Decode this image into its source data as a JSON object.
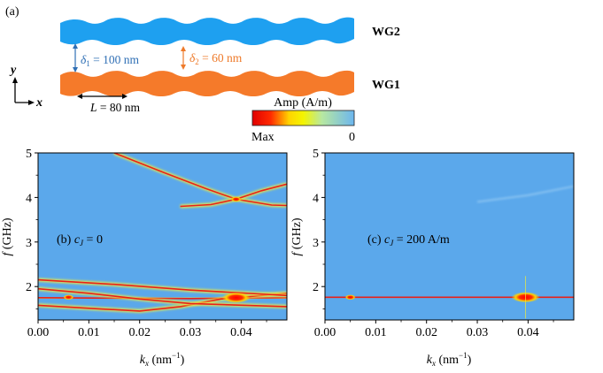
{
  "panel_a": {
    "label": "(a)",
    "waveguides": [
      {
        "name": "WG2",
        "color": "#1ea0f0"
      },
      {
        "name": "WG1",
        "color": "#f57a2a"
      }
    ],
    "dimensions": {
      "delta1": {
        "symbol": "δ",
        "sub": "1",
        "text": " = 100 nm",
        "color": "#2f6fb5"
      },
      "delta2": {
        "symbol": "δ",
        "sub": "2",
        "text": " = 60 nm",
        "color": "#ee7a2a"
      },
      "period": {
        "symbol": "L",
        "text": " = 80 nm"
      }
    },
    "axes": {
      "y": "y",
      "x": "x"
    },
    "colorbar": {
      "title": "Amp (A/m)",
      "min_label": "Max",
      "max_label": "0"
    }
  },
  "chart_data": [
    {
      "type": "heatmap",
      "panel": "(b)",
      "annotation": {
        "prefix": "(b) ",
        "var": "c",
        "sub": "J",
        "value": " = 0"
      },
      "xlabel": {
        "var": "k",
        "sub": "x",
        "unit": " (nm",
        "exp": "−1",
        "close": ")"
      },
      "ylabel": {
        "var": "f",
        "unit": " (GHz)"
      },
      "xlim": [
        0.0,
        0.049
      ],
      "ylim": [
        1.25,
        5.0
      ],
      "xticks": [
        "0.00",
        "0.01",
        "0.02",
        "0.03",
        "0.04"
      ],
      "xtick_values": [
        0.0,
        0.01,
        0.02,
        0.03,
        0.04
      ],
      "yticks": [
        "2",
        "3",
        "4",
        "5"
      ],
      "ytick_values": [
        2,
        3,
        4,
        5
      ],
      "background": "#5ba8eb",
      "bright_bands": [
        {
          "name": "upper-crossing-1",
          "points": [
            [
              0.015,
              5.0
            ],
            [
              0.025,
              4.55
            ],
            [
              0.033,
              4.2
            ],
            [
              0.039,
              3.96
            ],
            [
              0.046,
              3.83
            ],
            [
              0.049,
              3.82
            ]
          ]
        },
        {
          "name": "upper-crossing-2",
          "points": [
            [
              0.028,
              3.8
            ],
            [
              0.034,
              3.84
            ],
            [
              0.039,
              3.96
            ],
            [
              0.044,
              4.15
            ],
            [
              0.049,
              4.3
            ]
          ]
        },
        {
          "name": "lower-flat",
          "points": [
            [
              0.0,
              1.75
            ],
            [
              0.015,
              1.74
            ],
            [
              0.03,
              1.73
            ],
            [
              0.049,
              1.75
            ]
          ]
        },
        {
          "name": "lower-arc",
          "points": [
            [
              0.0,
              1.58
            ],
            [
              0.012,
              1.5
            ],
            [
              0.02,
              1.45
            ],
            [
              0.028,
              1.55
            ],
            [
              0.036,
              1.72
            ],
            [
              0.049,
              1.85
            ]
          ]
        },
        {
          "name": "lower-descend",
          "points": [
            [
              0.0,
              1.95
            ],
            [
              0.01,
              1.85
            ],
            [
              0.02,
              1.72
            ],
            [
              0.03,
              1.62
            ],
            [
              0.049,
              1.55
            ]
          ]
        },
        {
          "name": "lower-band-4",
          "points": [
            [
              0.0,
              2.15
            ],
            [
              0.015,
              2.05
            ],
            [
              0.03,
              1.92
            ],
            [
              0.049,
              1.8
            ]
          ]
        }
      ],
      "hotspots": [
        {
          "kx": 0.039,
          "f": 1.75
        },
        {
          "kx": 0.006,
          "f": 1.76
        },
        {
          "kx": 0.039,
          "f": 3.96
        }
      ]
    },
    {
      "type": "heatmap",
      "panel": "(c)",
      "annotation": {
        "prefix": "(c) ",
        "var": "c",
        "sub": "J",
        "value": " = 200 A/m"
      },
      "xlabel": {
        "var": "k",
        "sub": "x",
        "unit": " (nm",
        "exp": "−1",
        "close": ")"
      },
      "ylabel": {
        "var": "f",
        "unit": " (GHz)"
      },
      "xlim": [
        0.0,
        0.049
      ],
      "ylim": [
        1.25,
        5.0
      ],
      "xticks": [
        "0.00",
        "0.01",
        "0.02",
        "0.03",
        "0.04"
      ],
      "xtick_values": [
        0.0,
        0.01,
        0.02,
        0.03,
        0.04
      ],
      "yticks": [
        "2",
        "3",
        "4",
        "5"
      ],
      "ytick_values": [
        2,
        3,
        4,
        5
      ],
      "background": "#5ba8eb",
      "bright_bands": [
        {
          "name": "flat-line",
          "points": [
            [
              0.0,
              1.76
            ],
            [
              0.049,
              1.76
            ]
          ]
        },
        {
          "name": "faint-upper",
          "points": [
            [
              0.03,
              3.9
            ],
            [
              0.04,
              4.05
            ],
            [
              0.049,
              4.25
            ]
          ]
        }
      ],
      "hotspots": [
        {
          "kx": 0.0395,
          "f": 1.76
        },
        {
          "kx": 0.005,
          "f": 1.76
        }
      ]
    }
  ]
}
